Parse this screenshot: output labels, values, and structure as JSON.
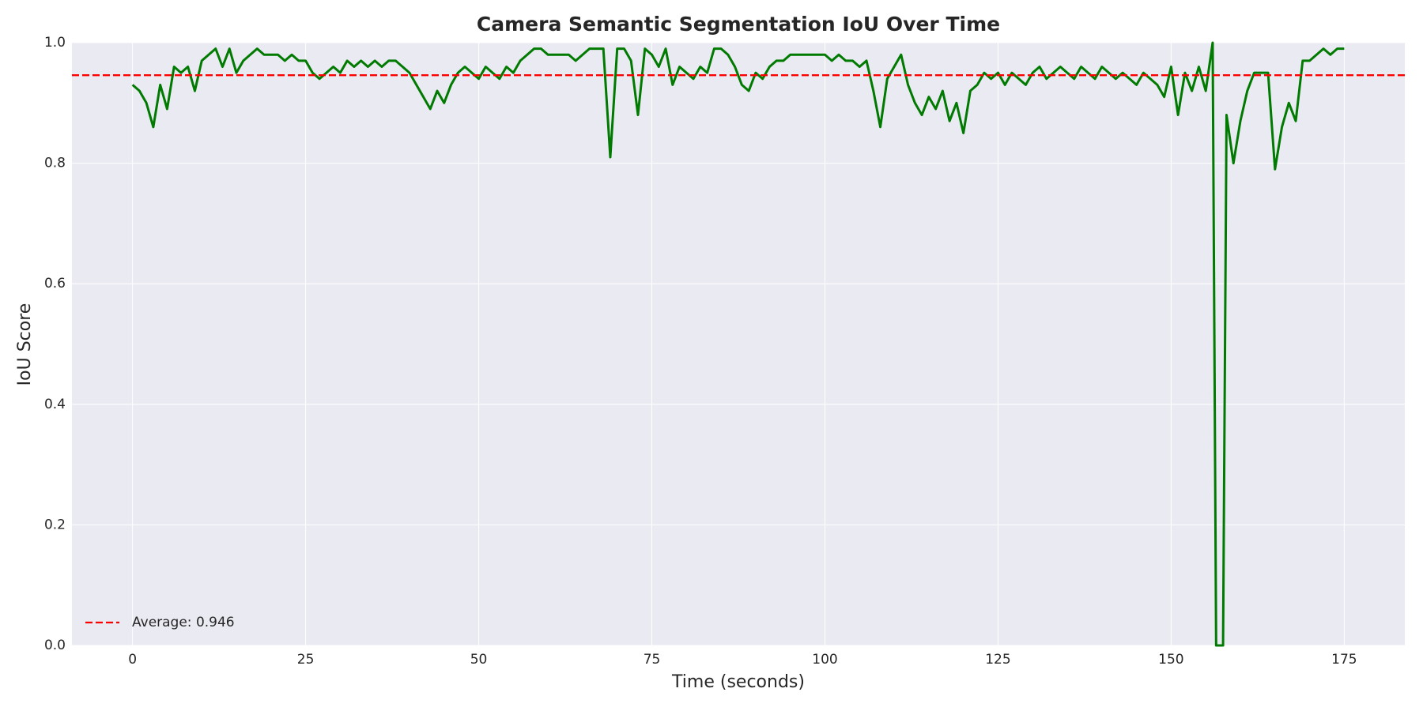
{
  "chart_data": {
    "type": "line",
    "title": "Camera Semantic Segmentation IoU Over Time",
    "x_label": "Time (seconds)",
    "y_label": "IoU Score",
    "x": [
      0,
      1,
      2,
      3,
      4,
      5,
      6,
      7,
      8,
      9,
      10,
      11,
      12,
      13,
      14,
      15,
      16,
      17,
      18,
      19,
      20,
      21,
      22,
      23,
      24,
      25,
      26,
      27,
      28,
      29,
      30,
      31,
      32,
      33,
      34,
      35,
      36,
      37,
      38,
      39,
      40,
      41,
      42,
      43,
      44,
      45,
      46,
      47,
      48,
      49,
      50,
      51,
      52,
      53,
      54,
      55,
      56,
      57,
      58,
      59,
      60,
      61,
      62,
      63,
      64,
      65,
      66,
      67,
      68,
      69,
      70,
      71,
      72,
      73,
      74,
      75,
      76,
      77,
      78,
      79,
      80,
      81,
      82,
      83,
      84,
      85,
      86,
      87,
      88,
      89,
      90,
      91,
      92,
      93,
      94,
      95,
      96,
      97,
      98,
      99,
      100,
      101,
      102,
      103,
      104,
      105,
      106,
      107,
      108,
      109,
      110,
      111,
      112,
      113,
      114,
      115,
      116,
      117,
      118,
      119,
      120,
      121,
      122,
      123,
      124,
      125,
      126,
      127,
      128,
      129,
      130,
      131,
      132,
      133,
      134,
      135,
      136,
      137,
      138,
      139,
      140,
      141,
      142,
      143,
      144,
      145,
      146,
      147,
      148,
      149,
      150,
      151,
      152,
      153,
      154,
      155,
      156,
      156.5,
      157,
      157.5,
      158,
      159,
      160,
      161,
      162,
      163,
      164,
      165,
      166,
      167,
      168,
      169,
      170,
      171,
      172,
      173,
      174,
      175
    ],
    "values": [
      0.93,
      0.92,
      0.9,
      0.86,
      0.93,
      0.89,
      0.96,
      0.95,
      0.96,
      0.92,
      0.97,
      0.98,
      0.99,
      0.96,
      0.99,
      0.95,
      0.97,
      0.98,
      0.99,
      0.98,
      0.98,
      0.98,
      0.97,
      0.98,
      0.97,
      0.97,
      0.95,
      0.94,
      0.95,
      0.96,
      0.95,
      0.97,
      0.96,
      0.97,
      0.96,
      0.97,
      0.96,
      0.97,
      0.97,
      0.96,
      0.95,
      0.93,
      0.91,
      0.89,
      0.92,
      0.9,
      0.93,
      0.95,
      0.96,
      0.95,
      0.94,
      0.96,
      0.95,
      0.94,
      0.96,
      0.95,
      0.97,
      0.98,
      0.99,
      0.99,
      0.98,
      0.98,
      0.98,
      0.98,
      0.97,
      0.98,
      0.99,
      0.99,
      0.99,
      0.81,
      0.99,
      0.99,
      0.97,
      0.88,
      0.99,
      0.98,
      0.96,
      0.99,
      0.93,
      0.96,
      0.95,
      0.94,
      0.96,
      0.95,
      0.99,
      0.99,
      0.98,
      0.96,
      0.93,
      0.92,
      0.95,
      0.94,
      0.96,
      0.97,
      0.97,
      0.98,
      0.98,
      0.98,
      0.98,
      0.98,
      0.98,
      0.97,
      0.98,
      0.97,
      0.97,
      0.96,
      0.97,
      0.92,
      0.86,
      0.94,
      0.96,
      0.98,
      0.93,
      0.9,
      0.88,
      0.91,
      0.89,
      0.92,
      0.87,
      0.9,
      0.85,
      0.92,
      0.93,
      0.95,
      0.94,
      0.95,
      0.93,
      0.95,
      0.94,
      0.93,
      0.95,
      0.96,
      0.94,
      0.95,
      0.96,
      0.95,
      0.94,
      0.96,
      0.95,
      0.94,
      0.96,
      0.95,
      0.94,
      0.95,
      0.94,
      0.93,
      0.95,
      0.94,
      0.93,
      0.91,
      0.96,
      0.88,
      0.95,
      0.92,
      0.96,
      0.92,
      1.0,
      0.0,
      0.0,
      0.0,
      0.88,
      0.8,
      0.87,
      0.92,
      0.95,
      0.95,
      0.95,
      0.79,
      0.86,
      0.9,
      0.87,
      0.97,
      0.97,
      0.98,
      0.99,
      0.98,
      0.99,
      0.99
    ],
    "color": "#007a00",
    "average": {
      "value": 0.946,
      "label": "Average: 0.946",
      "color": "#ff0000"
    },
    "xlim": [
      -8.75,
      183.75
    ],
    "ylim": [
      0,
      1
    ],
    "xticks": [
      0,
      25,
      50,
      75,
      100,
      125,
      150,
      175
    ],
    "yticks": [
      {
        "value": 0,
        "label": "0.0"
      },
      {
        "value": 0.2,
        "label": "0.2"
      },
      {
        "value": 0.4,
        "label": "0.4"
      },
      {
        "value": 0.6,
        "label": "0.6"
      },
      {
        "value": 0.8,
        "label": "0.8"
      },
      {
        "value": 1,
        "label": "1.0"
      }
    ],
    "grid": true,
    "legend": "lower left"
  }
}
